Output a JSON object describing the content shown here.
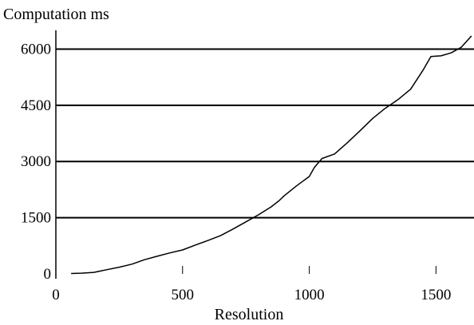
{
  "chart_data": {
    "type": "line",
    "title": "",
    "ylabel": "Computation ms",
    "xlabel": "Resolution",
    "xlim": [
      0,
      1650
    ],
    "ylim": [
      0,
      6500
    ],
    "x_ticks": [
      0,
      500,
      1000,
      1500
    ],
    "y_ticks": [
      0,
      1500,
      3000,
      4500,
      6000
    ],
    "x_tick_labels": [
      "0",
      "500",
      "1000",
      "1500"
    ],
    "y_tick_labels": [
      "0",
      "1500",
      "3000",
      "4500",
      "6000"
    ],
    "grid": "horizontal",
    "line_color": "#000000",
    "series": [
      {
        "x": [
          60,
          100,
          150,
          200,
          250,
          300,
          350,
          400,
          450,
          500,
          550,
          600,
          650,
          700,
          750,
          800,
          850,
          880,
          900,
          950,
          1000,
          1020,
          1050,
          1100,
          1150,
          1200,
          1250,
          1300,
          1350,
          1400,
          1450,
          1480,
          1520,
          1560,
          1600,
          1640
        ],
        "y": [
          10,
          20,
          40,
          110,
          180,
          260,
          380,
          470,
          560,
          640,
          770,
          890,
          1020,
          1200,
          1390,
          1580,
          1790,
          1950,
          2080,
          2350,
          2600,
          2840,
          3080,
          3200,
          3500,
          3820,
          4150,
          4420,
          4650,
          4930,
          5450,
          5800,
          5820,
          5900,
          6050,
          6350
        ]
      }
    ]
  }
}
